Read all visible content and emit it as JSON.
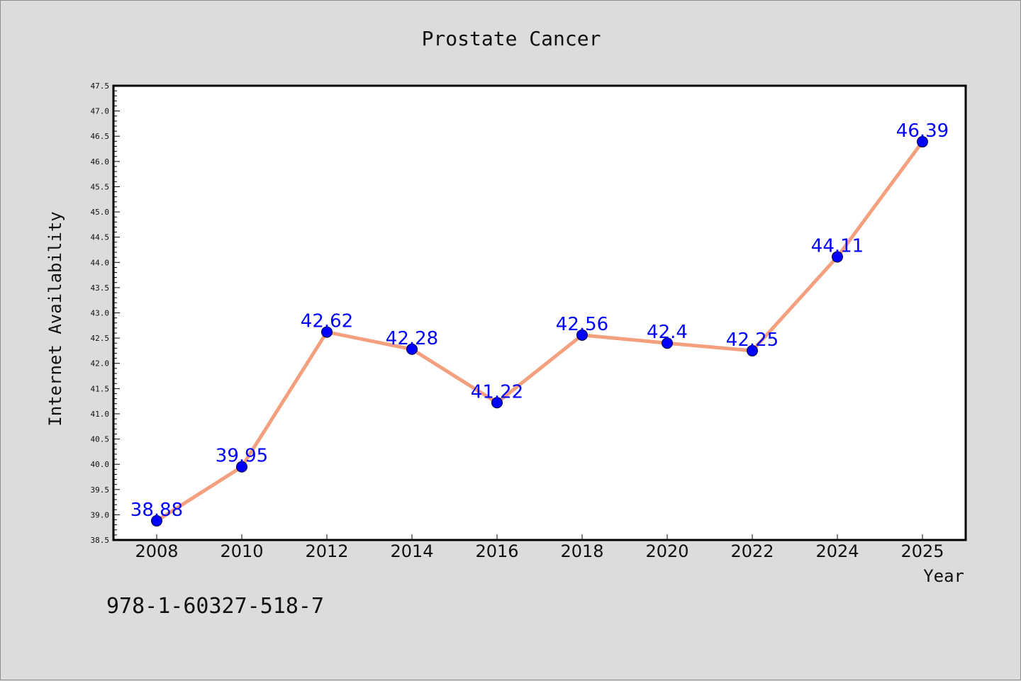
{
  "chart_data": {
    "type": "line",
    "title": "Prostate Cancer",
    "xlabel": "Year",
    "ylabel": "Internet Availability",
    "categories": [
      "2008",
      "2010",
      "2012",
      "2014",
      "2016",
      "2018",
      "2020",
      "2022",
      "2024",
      "2025"
    ],
    "series": [
      {
        "values": [
          38.88,
          39.95,
          42.62,
          42.28,
          41.22,
          42.56,
          42.4,
          42.25,
          44.11,
          46.39
        ],
        "data_labels": [
          "38.88",
          "39.95",
          "42.62",
          "42.28",
          "41.22",
          "42.56",
          "42.4",
          "42.25",
          "44.11",
          "46.39"
        ]
      }
    ],
    "ylim": [
      38.5,
      47.5
    ],
    "y_ticks": [
      "38.5",
      "39.0",
      "39.5",
      "40.0",
      "40.5",
      "41.0",
      "41.5",
      "42.0",
      "42.5",
      "43.0",
      "43.5",
      "44.0",
      "44.5",
      "45.0",
      "45.5",
      "46.0",
      "46.5",
      "47.0",
      "47.5"
    ],
    "grid": false,
    "line_color": "#f4a07f",
    "marker_color": "#0000ff",
    "label_color": "#0000ff"
  },
  "footnote": "978-1-60327-518-7"
}
